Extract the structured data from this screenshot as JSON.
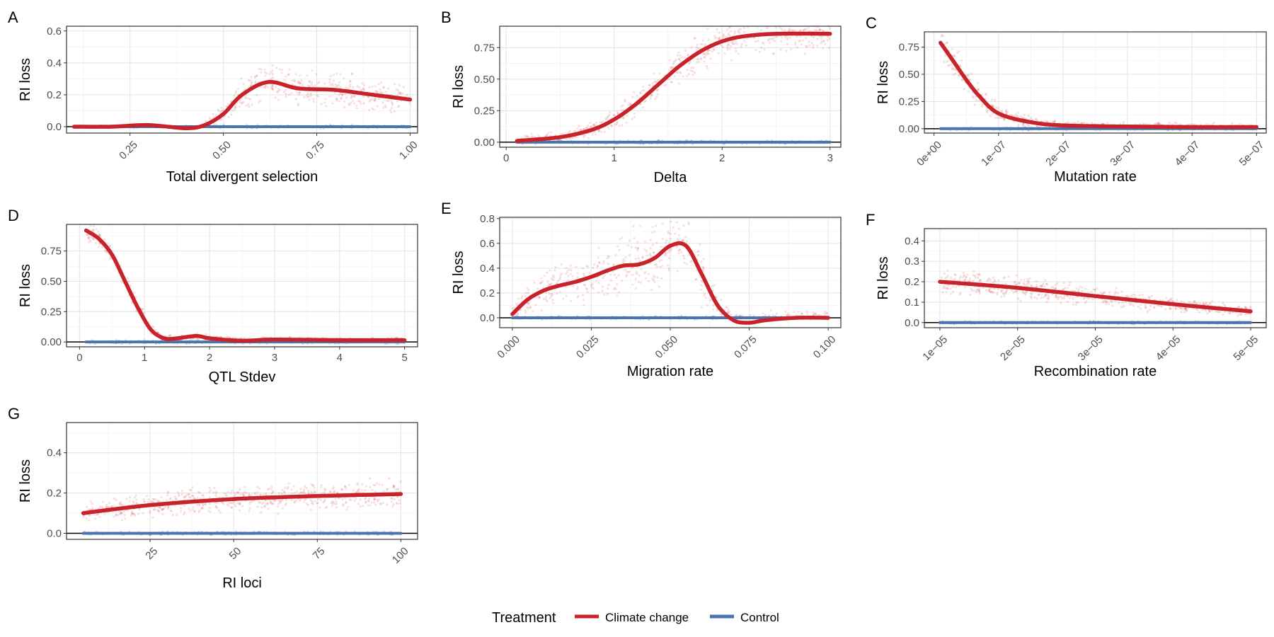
{
  "legend": {
    "title": "Treatment",
    "items": [
      {
        "label": "Climate change",
        "color": "#c8232b"
      },
      {
        "label": "Control",
        "color": "#4a74ad"
      }
    ]
  },
  "chart_data": [
    {
      "letter": "A",
      "type": "scatter",
      "xlabel": "Total divergent selection",
      "ylabel": "RI loss",
      "xlim": [
        0.08,
        1.02
      ],
      "ylim": [
        -0.04,
        0.63
      ],
      "x_scale": "linear",
      "tick_rotation": -45,
      "xticks": [
        0.25,
        0.5,
        0.75,
        1.0
      ],
      "xtick_labels": [
        "0.25",
        "0.50",
        "0.75",
        "1.00"
      ],
      "yticks": [
        0,
        0.2,
        0.4,
        0.6
      ],
      "ytick_labels": [
        "0.0",
        "0.2",
        "0.4",
        "0.6"
      ],
      "series": [
        {
          "name": "Climate change",
          "x": [
            0.1,
            0.2,
            0.3,
            0.4,
            0.45,
            0.5,
            0.55,
            0.62,
            0.7,
            0.8,
            0.9,
            1.0
          ],
          "y": [
            0,
            0,
            0.01,
            -0.01,
            0.01,
            0.08,
            0.2,
            0.28,
            0.24,
            0.23,
            0.2,
            0.17
          ]
        },
        {
          "name": "Control",
          "x": [
            0.1,
            1.0
          ],
          "y": [
            0,
            0
          ]
        }
      ],
      "cloud_start": 0.45,
      "cloud_spread": 0.13
    },
    {
      "letter": "B",
      "type": "scatter",
      "xlabel": "Delta",
      "ylabel": "RI loss",
      "xlim": [
        -0.06,
        3.1
      ],
      "ylim": [
        -0.04,
        0.92
      ],
      "x_scale": "linear",
      "tick_rotation": 0,
      "xticks": [
        0,
        1,
        2,
        3
      ],
      "xtick_labels": [
        "0",
        "1",
        "2",
        "3"
      ],
      "yticks": [
        0,
        0.25,
        0.5,
        0.75
      ],
      "ytick_labels": [
        "0.00",
        "0.25",
        "0.50",
        "0.75"
      ],
      "series": [
        {
          "name": "Climate change",
          "x": [
            0.1,
            0.5,
            0.8,
            1.0,
            1.2,
            1.4,
            1.6,
            1.8,
            2.0,
            2.2,
            2.5,
            3.0
          ],
          "y": [
            0.01,
            0.04,
            0.1,
            0.18,
            0.3,
            0.45,
            0.6,
            0.72,
            0.8,
            0.84,
            0.86,
            0.86
          ]
        },
        {
          "name": "Control",
          "x": [
            0.1,
            3.0
          ],
          "y": [
            0,
            0
          ]
        }
      ],
      "cloud_start": 0.1,
      "cloud_spread": 0.1
    },
    {
      "letter": "C",
      "type": "scatter",
      "xlabel": "Mutation rate",
      "ylabel": "RI loss",
      "xlim": [
        -1.5e-08,
        5.15e-07
      ],
      "ylim": [
        -0.04,
        0.89
      ],
      "x_scale": "linear",
      "tick_rotation": -45,
      "xticks": [
        0,
        1e-07,
        2e-07,
        3e-07,
        4e-07,
        5e-07
      ],
      "xtick_labels": [
        "0e+00",
        "1e−07",
        "2e−07",
        "3e−07",
        "4e−07",
        "5e−07"
      ],
      "yticks": [
        0,
        0.25,
        0.5,
        0.75
      ],
      "ytick_labels": [
        "0.00",
        "0.25",
        "0.50",
        "0.75"
      ],
      "series": [
        {
          "name": "Climate change",
          "x": [
            1e-08,
            3e-08,
            5e-08,
            7e-08,
            1e-07,
            1.5e-07,
            2e-07,
            3e-07,
            4e-07,
            5e-07
          ],
          "y": [
            0.79,
            0.62,
            0.45,
            0.3,
            0.14,
            0.06,
            0.03,
            0.02,
            0.015,
            0.015
          ]
        },
        {
          "name": "Control",
          "x": [
            1e-08,
            5e-07
          ],
          "y": [
            0,
            0
          ]
        }
      ],
      "cloud_start": 1e-08,
      "cloud_spread": 0.1
    },
    {
      "letter": "D",
      "type": "scatter",
      "xlabel": "QTL Stdev",
      "ylabel": "RI loss",
      "xlim": [
        -0.2,
        5.2
      ],
      "ylim": [
        -0.04,
        0.97
      ],
      "x_scale": "linear",
      "tick_rotation": 0,
      "xticks": [
        0,
        1,
        2,
        3,
        4,
        5
      ],
      "xtick_labels": [
        "0",
        "1",
        "2",
        "3",
        "4",
        "5"
      ],
      "yticks": [
        0,
        0.25,
        0.5,
        0.75
      ],
      "ytick_labels": [
        "0.00",
        "0.25",
        "0.50",
        "0.75"
      ],
      "series": [
        {
          "name": "Climate change",
          "x": [
            0.1,
            0.3,
            0.5,
            0.7,
            0.9,
            1.1,
            1.3,
            1.5,
            1.8,
            2.0,
            2.5,
            3.0,
            4.0,
            5.0
          ],
          "y": [
            0.92,
            0.85,
            0.72,
            0.5,
            0.28,
            0.1,
            0.03,
            0.03,
            0.05,
            0.03,
            0.01,
            0.02,
            0.015,
            0.015
          ]
        },
        {
          "name": "Control",
          "x": [
            0.1,
            5.0
          ],
          "y": [
            0,
            0
          ]
        }
      ],
      "cloud_start": 0.1,
      "cloud_spread": 0.06
    },
    {
      "letter": "E",
      "type": "scatter",
      "xlabel": "Migration rate",
      "ylabel": "RI loss",
      "xlim": [
        -0.004,
        0.104
      ],
      "ylim": [
        -0.08,
        0.81
      ],
      "x_scale": "linear",
      "tick_rotation": -45,
      "xticks": [
        0,
        0.025,
        0.05,
        0.075,
        0.1
      ],
      "xtick_labels": [
        "0.000",
        "0.025",
        "0.050",
        "0.075",
        "0.100"
      ],
      "yticks": [
        0,
        0.2,
        0.4,
        0.6,
        0.8
      ],
      "ytick_labels": [
        "0.0",
        "0.2",
        "0.4",
        "0.6",
        "0.8"
      ],
      "series": [
        {
          "name": "Climate change",
          "x": [
            0.0,
            0.005,
            0.01,
            0.015,
            0.02,
            0.025,
            0.03,
            0.035,
            0.04,
            0.045,
            0.05,
            0.055,
            0.06,
            0.065,
            0.07,
            0.075,
            0.08,
            0.09,
            0.1
          ],
          "y": [
            0.03,
            0.15,
            0.22,
            0.26,
            0.29,
            0.33,
            0.38,
            0.42,
            0.43,
            0.48,
            0.58,
            0.58,
            0.35,
            0.1,
            -0.02,
            -0.04,
            -0.02,
            0.0,
            0.0
          ]
        },
        {
          "name": "Control",
          "x": [
            0.0,
            0.1
          ],
          "y": [
            0,
            0
          ]
        }
      ],
      "cloud_start": 0.0,
      "cloud_spread": 0.2
    },
    {
      "letter": "F",
      "type": "scatter",
      "xlabel": "Recombination rate",
      "ylabel": "RI loss",
      "xlim": [
        8e-06,
        5.2e-05
      ],
      "ylim": [
        -0.025,
        0.46
      ],
      "x_scale": "linear",
      "tick_rotation": -45,
      "xticks": [
        1e-05,
        2e-05,
        3e-05,
        4e-05,
        5e-05
      ],
      "xtick_labels": [
        "1e−05",
        "2e−05",
        "3e−05",
        "4e−05",
        "5e−05"
      ],
      "yticks": [
        0,
        0.1,
        0.2,
        0.3,
        0.4
      ],
      "ytick_labels": [
        "0.0",
        "0.1",
        "0.2",
        "0.3",
        "0.4"
      ],
      "series": [
        {
          "name": "Climate change",
          "x": [
            1e-05,
            2e-05,
            3e-05,
            4e-05,
            5e-05
          ],
          "y": [
            0.2,
            0.17,
            0.13,
            0.09,
            0.055
          ]
        },
        {
          "name": "Control",
          "x": [
            1e-05,
            5e-05
          ],
          "y": [
            0,
            0
          ]
        }
      ],
      "cloud_start": 1e-05,
      "cloud_spread": 0.09
    },
    {
      "letter": "G",
      "type": "scatter",
      "xlabel": "RI loci",
      "ylabel": "RI loss",
      "xlim": [
        0,
        105
      ],
      "ylim": [
        -0.03,
        0.55
      ],
      "x_scale": "linear",
      "tick_rotation": -45,
      "xticks": [
        25,
        50,
        75,
        100
      ],
      "xtick_labels": [
        "25",
        "50",
        "75",
        "100"
      ],
      "yticks": [
        0,
        0.2,
        0.4
      ],
      "ytick_labels": [
        "0.0",
        "0.2",
        "0.4"
      ],
      "series": [
        {
          "name": "Climate change",
          "x": [
            5,
            25,
            50,
            75,
            100
          ],
          "y": [
            0.1,
            0.14,
            0.17,
            0.185,
            0.195
          ]
        },
        {
          "name": "Control",
          "x": [
            5,
            100
          ],
          "y": [
            0,
            0
          ]
        }
      ],
      "cloud_start": 5,
      "cloud_spread": 0.1
    }
  ]
}
